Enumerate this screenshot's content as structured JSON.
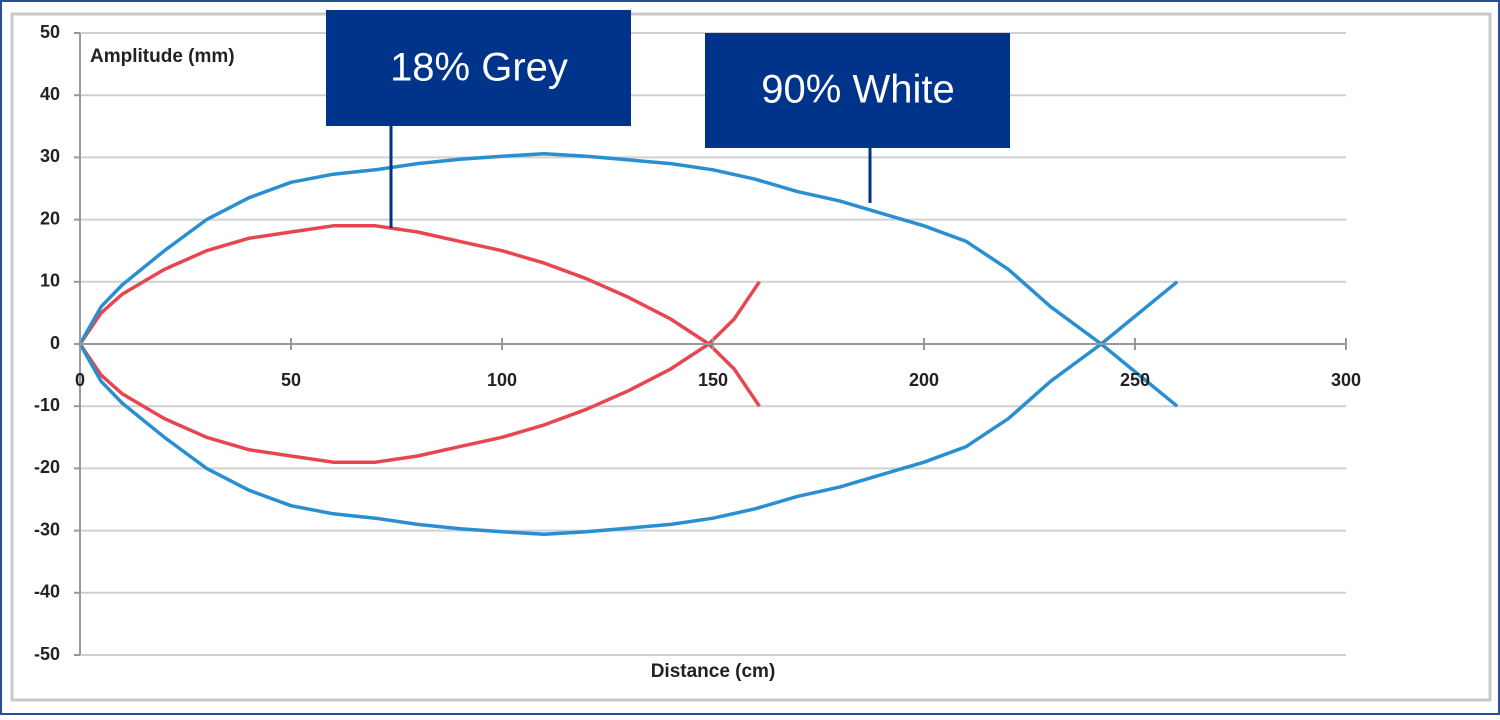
{
  "chart_data": {
    "type": "line",
    "x_label": "Distance (cm)",
    "y_label": "Amplitude (mm)",
    "xlim": [
      0,
      300
    ],
    "ylim": [
      -50,
      50
    ],
    "xticks": [
      0,
      50,
      100,
      150,
      200,
      250,
      300
    ],
    "yticks": [
      -50,
      -40,
      -30,
      -20,
      -10,
      0,
      10,
      20,
      30,
      40,
      50
    ],
    "grid": true,
    "series": [
      {
        "name": "18% Grey",
        "color": "#e8464f",
        "x": [
          0,
          5,
          10,
          20,
          30,
          40,
          50,
          60,
          70,
          80,
          90,
          100,
          110,
          120,
          130,
          140,
          149,
          155,
          161,
          null,
          0,
          5,
          10,
          20,
          30,
          40,
          50,
          60,
          70,
          80,
          90,
          100,
          110,
          120,
          130,
          140,
          149,
          155,
          161
        ],
        "values": [
          0,
          5,
          8,
          12,
          15,
          17,
          18,
          19,
          19,
          18,
          16.5,
          15,
          13,
          10.5,
          7.5,
          4,
          0,
          -4,
          -10,
          null,
          0,
          -5,
          -8,
          -12,
          -15,
          -17,
          -18,
          -19,
          -19,
          -18,
          -16.5,
          -15,
          -13,
          -10.5,
          -7.5,
          -4,
          0,
          4,
          10
        ]
      },
      {
        "name": "90% White",
        "color": "#2a8fd0",
        "x": [
          0,
          5,
          10,
          20,
          30,
          40,
          50,
          60,
          70,
          80,
          90,
          100,
          110,
          120,
          130,
          140,
          150,
          160,
          170,
          180,
          190,
          200,
          210,
          220,
          230,
          242,
          251,
          260,
          null,
          0,
          5,
          10,
          20,
          30,
          40,
          50,
          60,
          70,
          80,
          90,
          100,
          110,
          120,
          130,
          140,
          150,
          160,
          170,
          180,
          190,
          200,
          210,
          220,
          230,
          242,
          251,
          260
        ],
        "values": [
          0,
          6,
          9.5,
          15,
          20,
          23.5,
          26,
          27.3,
          28,
          29,
          29.7,
          30.2,
          30.6,
          30.2,
          29.6,
          29,
          28,
          26.5,
          24.5,
          23,
          21,
          19,
          16.5,
          12,
          6,
          0,
          -5,
          -10,
          null,
          0,
          -6,
          -9.5,
          -15,
          -20,
          -23.5,
          -26,
          -27.3,
          -28,
          -29,
          -29.7,
          -30.2,
          -30.6,
          -30.2,
          -29.6,
          -29,
          -28,
          -26.5,
          -24.5,
          -23,
          -21,
          -19,
          -16.5,
          -12,
          -6,
          0,
          5,
          10
        ]
      }
    ]
  }
}
